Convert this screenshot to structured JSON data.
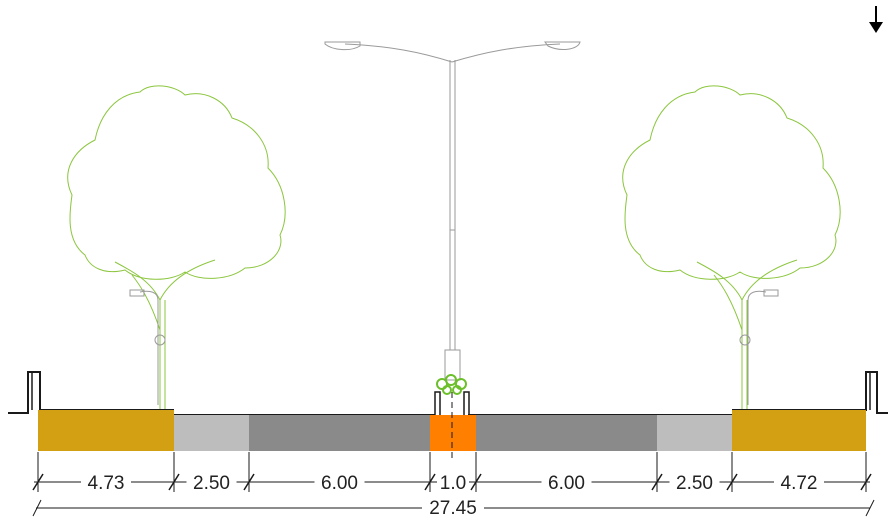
{
  "diagram": {
    "type": "street-cross-section",
    "segments": [
      {
        "name": "sidewalk-left",
        "width": "4.73",
        "color": "#d4a013"
      },
      {
        "name": "bike-lane-left",
        "width": "2.50",
        "color": "#bdbdbd"
      },
      {
        "name": "roadway-left",
        "width": "6.00",
        "color": "#8a8a8a"
      },
      {
        "name": "median",
        "width": "1.0",
        "color": "#ff7f00"
      },
      {
        "name": "roadway-right",
        "width": "6.00",
        "color": "#8a8a8a"
      },
      {
        "name": "bike-lane-right",
        "width": "2.50",
        "color": "#bdbdbd"
      },
      {
        "name": "sidewalk-right",
        "width": "4.72",
        "color": "#d4a013"
      }
    ],
    "total_width": "27.45",
    "north_arrow_icon": "down-arrow-icon",
    "colors": {
      "tree_outline": "#8cc63f",
      "line": "#1a1a1a",
      "lamp": "#9a9a9a",
      "shrub": "#6cbf2a"
    }
  }
}
